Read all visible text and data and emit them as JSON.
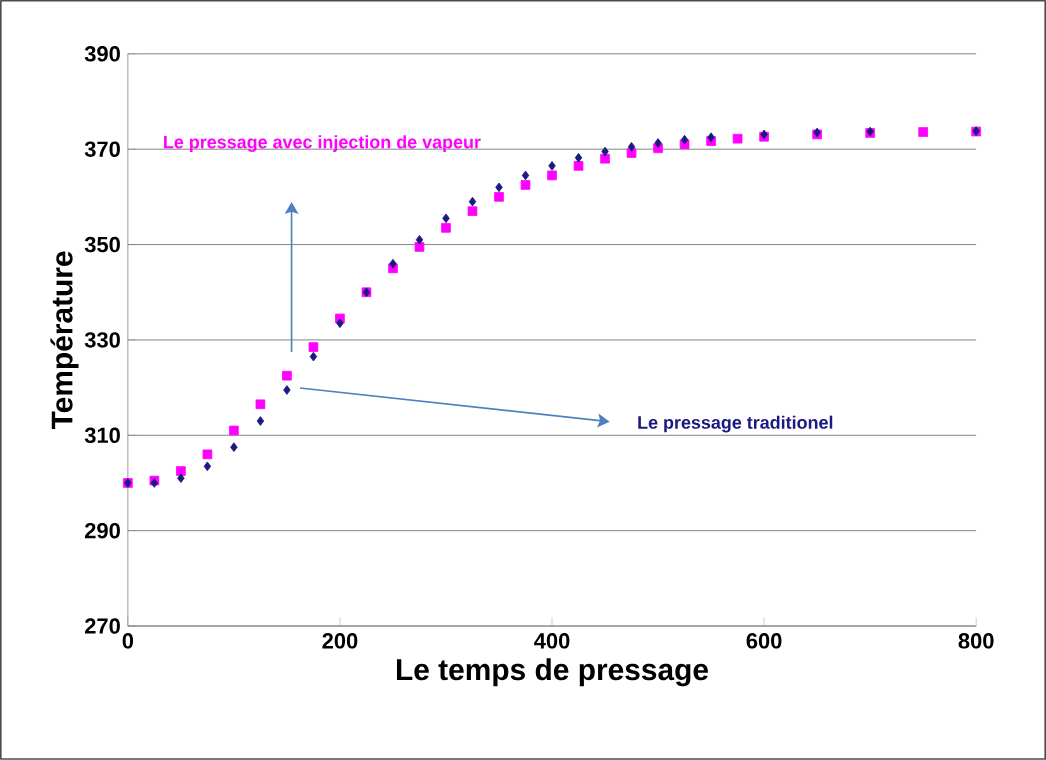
{
  "chart_data": {
    "type": "scatter",
    "xlabel": "Le temps de pressage",
    "ylabel": "Température",
    "xlim": [
      0,
      800
    ],
    "xticks": [
      0,
      200,
      400,
      600,
      800
    ],
    "ylim": [
      270,
      390
    ],
    "yticks": [
      270,
      290,
      310,
      330,
      350,
      370,
      390
    ],
    "grid": "y",
    "legend": false,
    "series": [
      {
        "name": "Le pressage avec injection de vapeur",
        "color": "#ff00ff",
        "marker": "square",
        "x": [
          0,
          25,
          50,
          75,
          100,
          125,
          150,
          175,
          200,
          225,
          250,
          275,
          300,
          325,
          350,
          375,
          400,
          425,
          450,
          475,
          500,
          525,
          550,
          575,
          600,
          650,
          700,
          750,
          800
        ],
        "values": [
          300,
          300.5,
          302.5,
          306,
          311,
          316.5,
          322.5,
          328.5,
          334.5,
          340,
          345,
          349.5,
          353.5,
          357,
          360,
          362.5,
          364.5,
          366.5,
          368,
          369.2,
          370.2,
          371,
          371.7,
          372.2,
          372.6,
          373.1,
          373.4,
          373.6,
          373.7
        ]
      },
      {
        "name": "Le pressage traditionel",
        "color": "#1a1a80",
        "marker": "diamond",
        "x": [
          0,
          25,
          50,
          75,
          100,
          125,
          150,
          175,
          200,
          225,
          250,
          275,
          300,
          325,
          350,
          375,
          400,
          425,
          450,
          475,
          500,
          525,
          550,
          600,
          650,
          700,
          800
        ],
        "values": [
          300,
          300,
          301,
          303.5,
          307.5,
          313,
          319.5,
          326.5,
          333.5,
          340,
          346,
          351,
          355.5,
          359,
          362,
          364.5,
          366.5,
          368.2,
          369.5,
          370.5,
          371.3,
          372,
          372.5,
          373.1,
          373.5,
          373.7,
          373.8
        ]
      }
    ]
  }
}
